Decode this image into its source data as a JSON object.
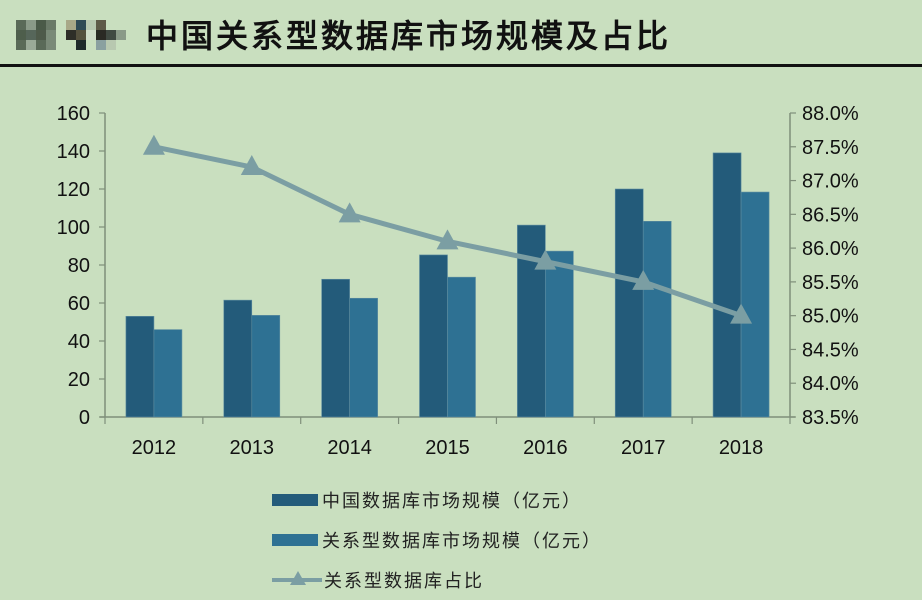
{
  "header": {
    "title": "中国关系型数据库市场规模及占比",
    "logo": "blurred-logo-watermark"
  },
  "colors": {
    "background": "#c9dfbf",
    "series_total": "#235b7a",
    "series_relational": "#2e7193",
    "series_share": "#7b9ea3",
    "axis": "#7f8f7a"
  },
  "legend": {
    "items": [
      {
        "label": "中国数据库市场规模（亿元）",
        "type": "bar"
      },
      {
        "label": "关系型数据库市场规模（亿元）",
        "type": "bar"
      },
      {
        "label": "关系型数据库占比",
        "type": "line-triangle"
      }
    ]
  },
  "chart_data": {
    "type": "bar",
    "title": "中国关系型数据库市场规模及占比",
    "categories": [
      "2012",
      "2013",
      "2014",
      "2015",
      "2016",
      "2017",
      "2018"
    ],
    "series": [
      {
        "name": "中国数据库市场规模（亿元）",
        "type": "bar",
        "axis": "left",
        "values": [
          53,
          61.5,
          72.5,
          85.3,
          101,
          120,
          139
        ]
      },
      {
        "name": "关系型数据库市场规模（亿元）",
        "type": "bar",
        "axis": "left",
        "values": [
          46,
          53.5,
          62.5,
          73.6,
          87.3,
          103,
          118.4
        ]
      },
      {
        "name": "关系型数据库占比",
        "type": "line",
        "axis": "right",
        "marker": "triangle",
        "values": [
          87.5,
          87.2,
          86.5,
          86.1,
          85.8,
          85.5,
          85.0
        ]
      }
    ],
    "left_axis": {
      "ylim": [
        0,
        160
      ],
      "ticks": [
        "0",
        "20",
        "40",
        "60",
        "80",
        "100",
        "120",
        "140",
        "160"
      ]
    },
    "right_axis": {
      "ylim": [
        83.5,
        88.0
      ],
      "ticks": [
        "83.5%",
        "84.0%",
        "84.5%",
        "85.0%",
        "85.5%",
        "86.0%",
        "86.5%",
        "87.0%",
        "87.5%",
        "88.0%"
      ]
    },
    "xlabel": "",
    "ylabel": "",
    "grid": false,
    "legend_position": "bottom"
  }
}
